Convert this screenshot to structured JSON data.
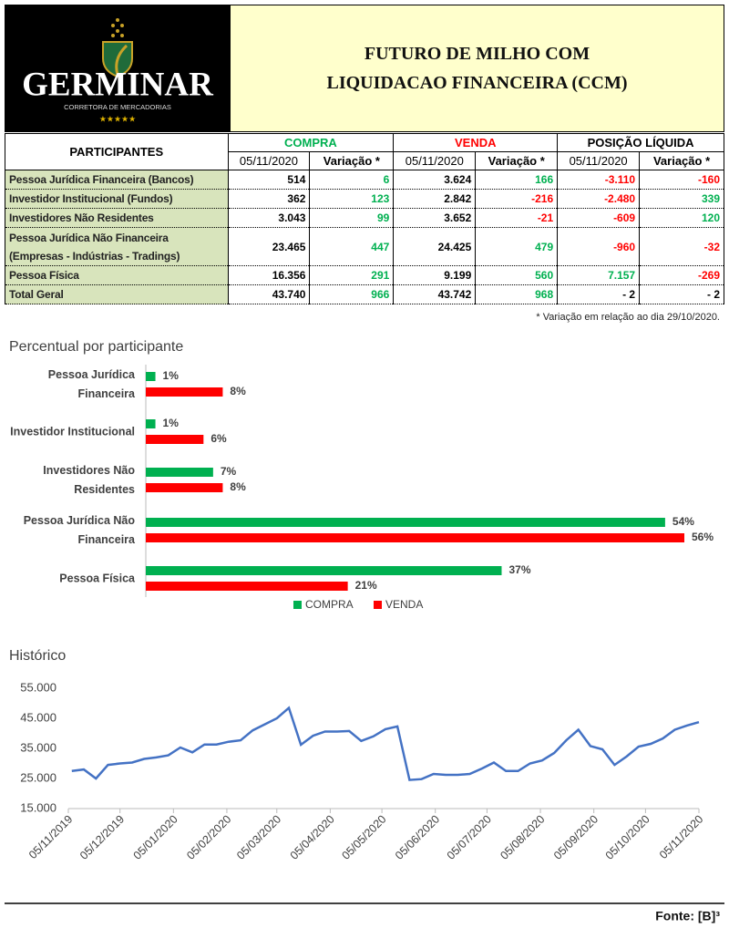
{
  "header": {
    "brand": "GERMINAR",
    "tagline": "CORRETORA DE MERCADORIAS",
    "stars": "★★★★★",
    "title_line1": "FUTURO DE MILHO COM",
    "title_line2": "LIQUIDACAO FINANCEIRA (CCM)"
  },
  "table": {
    "corner": "PARTICIPANTES",
    "groups": [
      "COMPRA",
      "VENDA",
      "POSIÇÃO LÍQUIDA"
    ],
    "group_colors": [
      "#00b050",
      "#ff0000",
      "#000000"
    ],
    "columns": [
      "05/11/2020",
      "Variação *",
      "05/11/2020",
      "Variação *",
      "05/11/2020",
      "Variação *"
    ],
    "rows": [
      {
        "label": "Pessoa Jurídica Financeira (Bancos)",
        "cells": [
          "514",
          "6",
          "3.624",
          "166",
          "-3.110",
          "-160"
        ]
      },
      {
        "label": "Investidor Institucional (Fundos)",
        "cells": [
          "362",
          "123",
          "2.842",
          "-216",
          "-2.480",
          "339"
        ]
      },
      {
        "label": "Investidores Não Residentes",
        "cells": [
          "3.043",
          "99",
          "3.652",
          "-21",
          "-609",
          "120"
        ]
      },
      {
        "label": "Pessoa Jurídica Não Financeira (Empresas - Indústrias - Tradings)",
        "cells": [
          "23.465",
          "447",
          "24.425",
          "479",
          "-960",
          "-32"
        ]
      },
      {
        "label": "Pessoa Física",
        "cells": [
          "16.356",
          "291",
          "9.199",
          "560",
          "7.157",
          "-269"
        ]
      },
      {
        "label": "Total Geral",
        "cells": [
          "43.740",
          "966",
          "43.742",
          "968",
          "- 2",
          "- 2"
        ]
      }
    ],
    "note": "* Variação em relação ao dia 29/10/2020."
  },
  "chart_data": [
    {
      "type": "bar",
      "orientation": "horizontal",
      "title": "Percentual por participante",
      "categories": [
        "Pessoa Jurídica Financeira",
        "Investidor Institucional",
        "Investidores Não Residentes",
        "Pessoa Jurídica Não Financeira",
        "Pessoa Física"
      ],
      "series": [
        {
          "name": "COMPRA",
          "color": "#00b050",
          "values": [
            1,
            1,
            7,
            54,
            37
          ],
          "value_labels": [
            "1%",
            "1%",
            "7%",
            "54%",
            "37%"
          ]
        },
        {
          "name": "VENDA",
          "color": "#ff0000",
          "values": [
            8,
            6,
            8,
            56,
            21
          ],
          "value_labels": [
            "8%",
            "6%",
            "8%",
            "56%",
            "21%"
          ]
        }
      ],
      "legend": "bottom"
    },
    {
      "type": "line",
      "title": "Histórico",
      "x": [
        "07/11/2019",
        "14/11/2019",
        "21/11/2019",
        "28/11/2019",
        "05/12/2019",
        "12/12/2019",
        "19/12/2019",
        "26/12/2019",
        "02/01/2020",
        "09/01/2020",
        "16/01/2020",
        "23/01/2020",
        "30/01/2020",
        "06/02/2020",
        "13/02/2020",
        "20/02/2020",
        "27/02/2020",
        "05/03/2020",
        "12/03/2020",
        "19/03/2020",
        "26/03/2020",
        "02/04/2020",
        "09/04/2020",
        "16/04/2020",
        "23/04/2020",
        "30/04/2020",
        "07/05/2020",
        "14/05/2020",
        "21/05/2020",
        "28/05/2020",
        "04/06/2020",
        "11/06/2020",
        "18/06/2020",
        "25/06/2020",
        "02/07/2020",
        "09/07/2020",
        "16/07/2020",
        "23/07/2020",
        "30/07/2020",
        "06/08/2020",
        "13/08/2020",
        "20/08/2020",
        "27/08/2020",
        "03/09/2020",
        "10/09/2020",
        "17/09/2020",
        "24/09/2020",
        "01/10/2020",
        "08/10/2020",
        "15/10/2020",
        "22/10/2020",
        "29/10/2020",
        "05/11/2020"
      ],
      "series": [
        {
          "color": "#4472c4",
          "values": [
            27500,
            28000,
            25000,
            29500,
            30000,
            30300,
            31500,
            32000,
            32700,
            35300,
            33700,
            36300,
            36300,
            37200,
            37700,
            41000,
            43000,
            45000,
            48500,
            36200,
            39200,
            40600,
            40600,
            40800,
            37500,
            39000,
            41400,
            42300,
            24500,
            24800,
            26500,
            26200,
            26200,
            26500,
            28300,
            30300,
            27500,
            27500,
            30000,
            31000,
            33500,
            37700,
            41200,
            35800,
            34700,
            29500,
            32300,
            35600,
            36500,
            38300,
            41200,
            42600,
            43740
          ]
        }
      ],
      "xlim": [
        "05/11/2019",
        "05/11/2020"
      ],
      "xticks": [
        "05/11/2019",
        "05/12/2019",
        "05/01/2020",
        "05/02/2020",
        "05/03/2020",
        "05/04/2020",
        "05/05/2020",
        "05/06/2020",
        "05/07/2020",
        "05/08/2020",
        "05/09/2020",
        "05/10/2020",
        "05/11/2020"
      ],
      "ylim": [
        15000,
        55000
      ],
      "yticks": [
        {
          "value": 15000,
          "label": "15.000"
        },
        {
          "value": 25000,
          "label": "25.000"
        },
        {
          "value": 35000,
          "label": "35.000"
        },
        {
          "value": 45000,
          "label": "45.000"
        },
        {
          "value": 55000,
          "label": "55.000"
        }
      ]
    }
  ],
  "footer": {
    "source": "Fonte: [B]³"
  }
}
